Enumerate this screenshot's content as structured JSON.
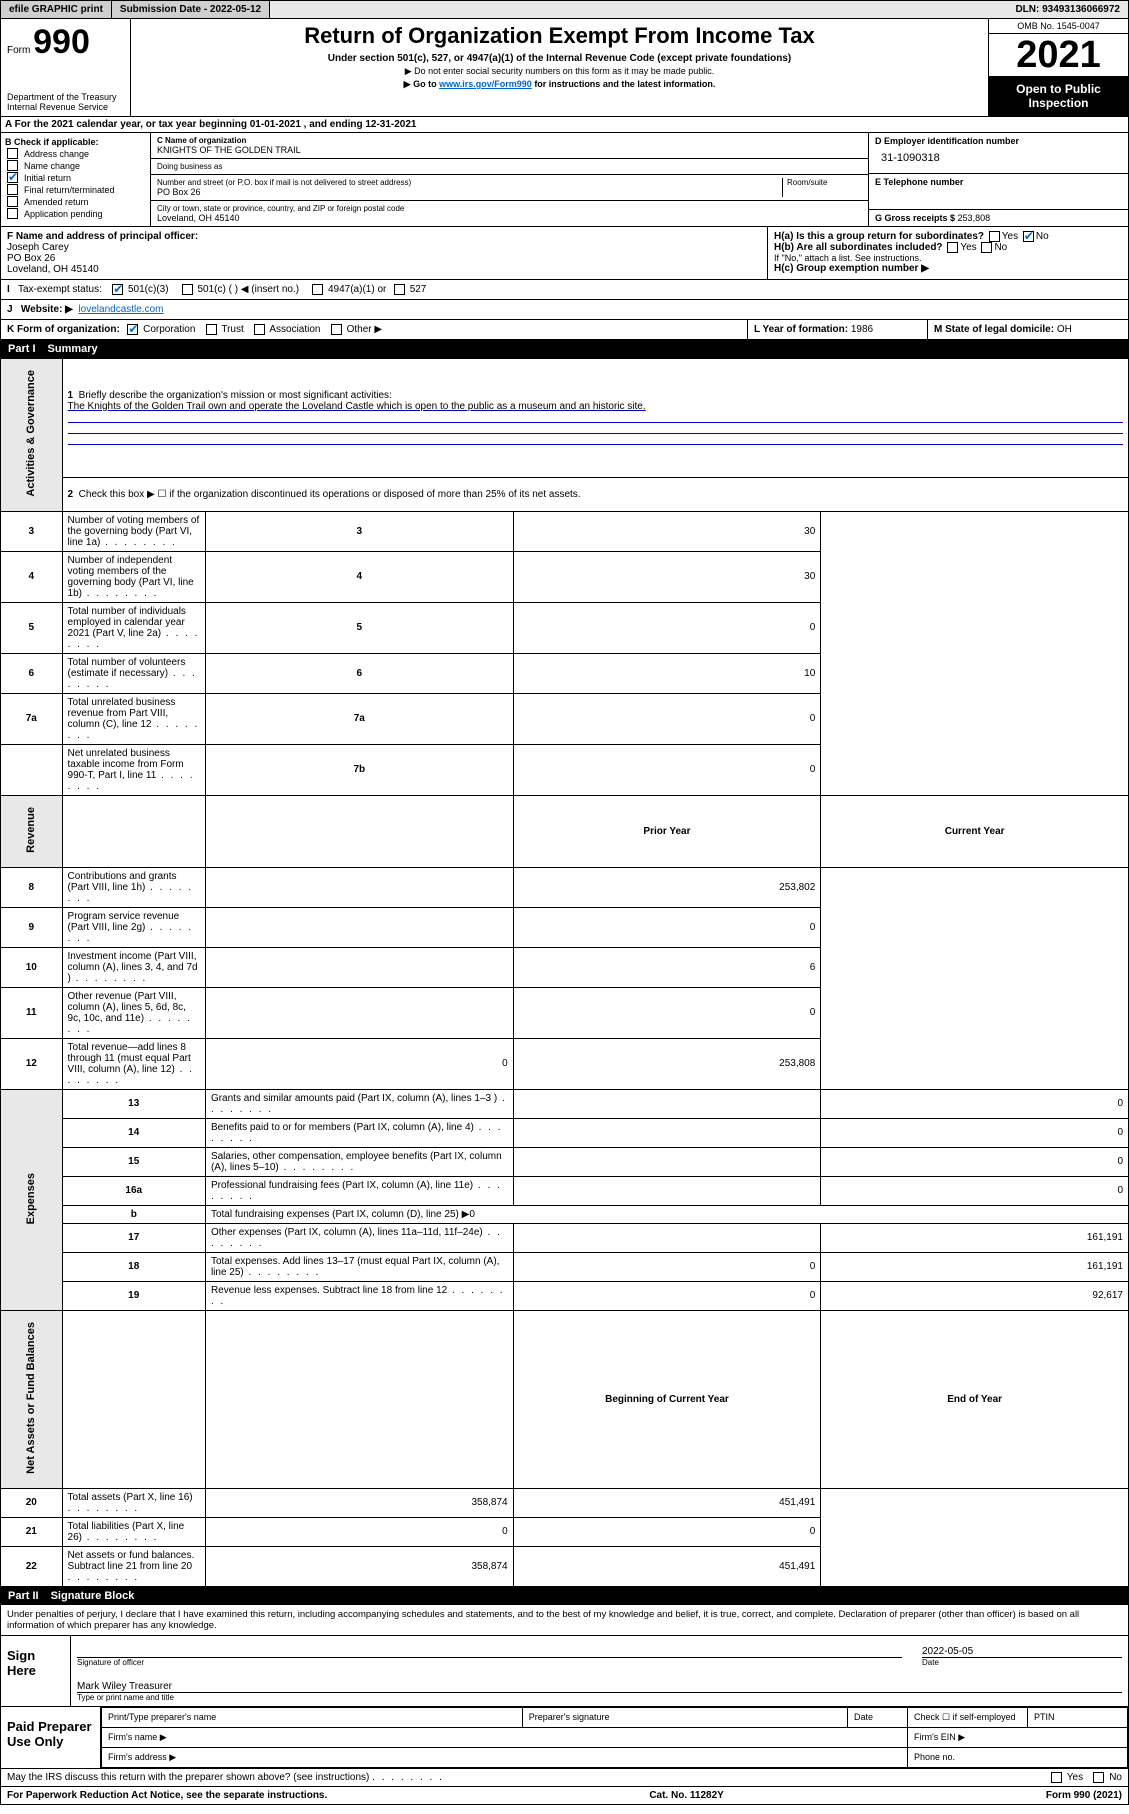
{
  "topbar": {
    "efile": "efile GRAPHIC print",
    "submission_label": "Submission Date - ",
    "submission_date": "2022-05-12",
    "dln_label": "DLN: ",
    "dln": "93493136066972"
  },
  "header": {
    "form_word": "Form",
    "form_number": "990",
    "dept": "Department of the Treasury\nInternal Revenue Service",
    "title": "Return of Organization Exempt From Income Tax",
    "subtitle": "Under section 501(c), 527, or 4947(a)(1) of the Internal Revenue Code (except private foundations)",
    "note1": "▶ Do not enter social security numbers on this form as it may be made public.",
    "note2_pre": "▶ Go to ",
    "note2_link": "www.irs.gov/Form990",
    "note2_post": " for instructions and the latest information.",
    "omb": "OMB No. 1545-0047",
    "year": "2021",
    "open_public": "Open to Public Inspection"
  },
  "row_a": {
    "text_pre": "A For the 2021 calendar year, or tax year beginning ",
    "begin": "01-01-2021",
    "mid": " , and ending ",
    "end": "12-31-2021"
  },
  "section_b": {
    "b_label": "B Check if applicable:",
    "checks": [
      {
        "label": "Address change",
        "checked": false
      },
      {
        "label": "Name change",
        "checked": false
      },
      {
        "label": "Initial return",
        "checked": true
      },
      {
        "label": "Final return/terminated",
        "checked": false
      },
      {
        "label": "Amended return",
        "checked": false
      },
      {
        "label": "Application pending",
        "checked": false
      }
    ],
    "c_name_label": "C Name of organization",
    "c_name": "KNIGHTS OF THE GOLDEN TRAIL",
    "dba_label": "Doing business as",
    "dba": "",
    "street_label": "Number and street (or P.O. box if mail is not delivered to street address)",
    "room_label": "Room/suite",
    "street": "PO Box 26",
    "city_label": "City or town, state or province, country, and ZIP or foreign postal code",
    "city": "Loveland, OH  45140",
    "d_label": "D Employer identification number",
    "d_ein": "31-1090318",
    "e_label": "E Telephone number",
    "e_phone": "",
    "g_label": "G Gross receipts $ ",
    "g_amount": "253,808"
  },
  "row_f": {
    "f_label": "F Name and address of principal officer:",
    "f_name": "Joseph Carey",
    "f_addr1": "PO Box 26",
    "f_addr2": "Loveland, OH  45140",
    "ha": "H(a)  Is this a group return for subordinates?",
    "ha_yes": "Yes",
    "ha_no": "No",
    "hb": "H(b)  Are all subordinates included?",
    "hb_note": "If \"No,\" attach a list. See instructions.",
    "hc": "H(c)  Group exemption number ▶"
  },
  "tax_status": {
    "i_label": "I",
    "label": "Tax-exempt status:",
    "opt1": "501(c)(3)",
    "opt2": "501(c) (  ) ◀ (insert no.)",
    "opt3": "4947(a)(1) or",
    "opt4": "527"
  },
  "row_j": {
    "j_label": "J",
    "website_label": "Website: ▶",
    "website": "lovelandcastle.com"
  },
  "row_k": {
    "k_label": "K Form of organization:",
    "opts": [
      "Corporation",
      "Trust",
      "Association",
      "Other ▶"
    ],
    "l_label": "L Year of formation: ",
    "l_year": "1986",
    "m_label": "M State of legal domicile: ",
    "m_state": "OH"
  },
  "part1": {
    "header_part": "Part I",
    "header_title": "Summary",
    "q1_label": "1",
    "q1_text": "Briefly describe the organization's mission or most significant activities:",
    "q1_mission": "The Knights of the Golden Trail own and operate the Loveland Castle which is open to the public as a museum and an historic site.",
    "q2_label": "2",
    "q2_text": "Check this box ▶ ☐ if the organization discontinued its operations or disposed of more than 25% of its net assets.",
    "rows_gov": [
      {
        "n": "3",
        "text": "Number of voting members of the governing body (Part VI, line 1a)",
        "box": "3",
        "val": "30"
      },
      {
        "n": "4",
        "text": "Number of independent voting members of the governing body (Part VI, line 1b)",
        "box": "4",
        "val": "30"
      },
      {
        "n": "5",
        "text": "Total number of individuals employed in calendar year 2021 (Part V, line 2a)",
        "box": "5",
        "val": "0"
      },
      {
        "n": "6",
        "text": "Total number of volunteers (estimate if necessary)",
        "box": "6",
        "val": "10"
      },
      {
        "n": "7a",
        "text": "Total unrelated business revenue from Part VIII, column (C), line 12",
        "box": "7a",
        "val": "0"
      },
      {
        "n": "",
        "text": "Net unrelated business taxable income from Form 990-T, Part I, line 11",
        "box": "7b",
        "val": "0"
      }
    ],
    "col_prior": "Prior Year",
    "col_current": "Current Year",
    "rows_rev": [
      {
        "n": "8",
        "text": "Contributions and grants (Part VIII, line 1h)",
        "prior": "",
        "cur": "253,802"
      },
      {
        "n": "9",
        "text": "Program service revenue (Part VIII, line 2g)",
        "prior": "",
        "cur": "0"
      },
      {
        "n": "10",
        "text": "Investment income (Part VIII, column (A), lines 3, 4, and 7d )",
        "prior": "",
        "cur": "6"
      },
      {
        "n": "11",
        "text": "Other revenue (Part VIII, column (A), lines 5, 6d, 8c, 9c, 10c, and 11e)",
        "prior": "",
        "cur": "0"
      },
      {
        "n": "12",
        "text": "Total revenue—add lines 8 through 11 (must equal Part VIII, column (A), line 12)",
        "prior": "0",
        "cur": "253,808"
      }
    ],
    "rows_exp": [
      {
        "n": "13",
        "text": "Grants and similar amounts paid (Part IX, column (A), lines 1–3 )",
        "prior": "",
        "cur": "0"
      },
      {
        "n": "14",
        "text": "Benefits paid to or for members (Part IX, column (A), line 4)",
        "prior": "",
        "cur": "0"
      },
      {
        "n": "15",
        "text": "Salaries, other compensation, employee benefits (Part IX, column (A), lines 5–10)",
        "prior": "",
        "cur": "0"
      },
      {
        "n": "16a",
        "text": "Professional fundraising fees (Part IX, column (A), line 11e)",
        "prior": "",
        "cur": "0"
      },
      {
        "n": "b",
        "text": "Total fundraising expenses (Part IX, column (D), line 25) ▶0",
        "prior": null,
        "cur": null
      },
      {
        "n": "17",
        "text": "Other expenses (Part IX, column (A), lines 11a–11d, 11f–24e)",
        "prior": "",
        "cur": "161,191"
      },
      {
        "n": "18",
        "text": "Total expenses. Add lines 13–17 (must equal Part IX, column (A), line 25)",
        "prior": "0",
        "cur": "161,191"
      },
      {
        "n": "19",
        "text": "Revenue less expenses. Subtract line 18 from line 12",
        "prior": "0",
        "cur": "92,617"
      }
    ],
    "col_begin": "Beginning of Current Year",
    "col_end": "End of Year",
    "rows_net": [
      {
        "n": "20",
        "text": "Total assets (Part X, line 16)",
        "prior": "358,874",
        "cur": "451,491"
      },
      {
        "n": "21",
        "text": "Total liabilities (Part X, line 26)",
        "prior": "0",
        "cur": "0"
      },
      {
        "n": "22",
        "text": "Net assets or fund balances. Subtract line 21 from line 20",
        "prior": "358,874",
        "cur": "451,491"
      }
    ],
    "side_gov": "Activities & Governance",
    "side_rev": "Revenue",
    "side_exp": "Expenses",
    "side_net": "Net Assets or Fund Balances"
  },
  "part2": {
    "header_part": "Part II",
    "header_title": "Signature Block",
    "intro": "Under penalties of perjury, I declare that I have examined this return, including accompanying schedules and statements, and to the best of my knowledge and belief, it is true, correct, and complete. Declaration of preparer (other than officer) is based on all information of which preparer has any knowledge.",
    "sign_here": "Sign Here",
    "sig_officer": "Signature of officer",
    "sig_date_label": "Date",
    "sig_date": "2022-05-05",
    "sig_name": "Mark Wiley Treasurer",
    "sig_name_label": "Type or print name and title",
    "paid_label": "Paid Preparer Use Only",
    "paid_cols": [
      "Print/Type preparer's name",
      "Preparer's signature",
      "Date"
    ],
    "paid_check": "Check ☐ if self-employed",
    "paid_ptin": "PTIN",
    "firm_name": "Firm's name  ▶",
    "firm_ein": "Firm's EIN ▶",
    "firm_addr": "Firm's address ▶",
    "firm_phone": "Phone no."
  },
  "footer": {
    "may_discuss": "May the IRS discuss this return with the preparer shown above? (see instructions)",
    "yes": "Yes",
    "no": "No",
    "paperwork": "For Paperwork Reduction Act Notice, see the separate instructions.",
    "cat": "Cat. No. 11282Y",
    "form": "Form 990 (2021)"
  },
  "colors": {
    "link": "#0066cc",
    "header_bg": "#000000",
    "check_color": "#0066cc"
  }
}
